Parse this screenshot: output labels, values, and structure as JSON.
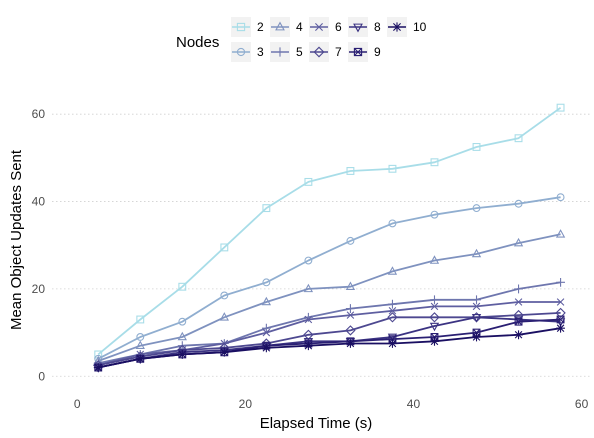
{
  "chart_data": {
    "type": "line",
    "xlabel": "Elapsed Time (s)",
    "ylabel": "Mean Object Updates Sent",
    "xlim": [
      -3,
      61
    ],
    "ylim": [
      -2,
      66
    ],
    "x_ticks": [
      0,
      20,
      40,
      60
    ],
    "y_ticks": [
      0,
      20,
      40,
      60
    ],
    "grid": "horizontal-dotted",
    "legend": {
      "title": "Nodes",
      "placement": "top"
    },
    "x": [
      2.5,
      7.5,
      12.5,
      17.5,
      22.5,
      27.5,
      32.5,
      37.5,
      42.5,
      47.5,
      52.5,
      57.5
    ],
    "series": [
      {
        "name": "2",
        "color": "#a8dde8",
        "marker": "square",
        "values": [
          5,
          13,
          20.5,
          29.5,
          38.5,
          44.5,
          47,
          47.5,
          49,
          52.5,
          54.5,
          61.5
        ]
      },
      {
        "name": "3",
        "color": "#90aed0",
        "marker": "circle",
        "values": [
          4,
          9,
          12.5,
          18.5,
          21.5,
          26.5,
          31,
          35,
          37,
          38.5,
          39.5,
          41
        ]
      },
      {
        "name": "4",
        "color": "#7f92bf",
        "marker": "triangle",
        "values": [
          3.5,
          7,
          9,
          13.5,
          17,
          20,
          20.5,
          24,
          26.5,
          28,
          30.5,
          32.5
        ]
      },
      {
        "name": "5",
        "color": "#6e76ae",
        "marker": "plus",
        "values": [
          3,
          5,
          7,
          7.5,
          11,
          13.5,
          15.5,
          16.5,
          17.5,
          17.5,
          20,
          21.5
        ]
      },
      {
        "name": "6",
        "color": "#5e5ea0",
        "marker": "x",
        "values": [
          2.5,
          5,
          6,
          7.5,
          10,
          13,
          14,
          15,
          16,
          16,
          17,
          17
        ]
      },
      {
        "name": "7",
        "color": "#4d4890",
        "marker": "diamond",
        "values": [
          2.5,
          4.5,
          6,
          6.5,
          7.5,
          9.5,
          10.5,
          13.5,
          13.5,
          13.5,
          14,
          14.5
        ]
      },
      {
        "name": "8",
        "color": "#3b3382",
        "marker": "triangle-down",
        "values": [
          2,
          4,
          5.5,
          6,
          7,
          8,
          8,
          9,
          11.5,
          13.5,
          13,
          12.5
        ]
      },
      {
        "name": "9",
        "color": "#2a1f73",
        "marker": "square-x",
        "values": [
          2,
          4,
          5,
          5.5,
          7,
          7.5,
          8,
          8.5,
          9,
          10,
          12.5,
          13
        ]
      },
      {
        "name": "10",
        "color": "#1a0f62",
        "marker": "asterisk",
        "values": [
          2,
          4,
          5,
          5.5,
          6.5,
          7,
          7.5,
          7.5,
          8,
          9,
          9.5,
          11
        ]
      }
    ]
  }
}
